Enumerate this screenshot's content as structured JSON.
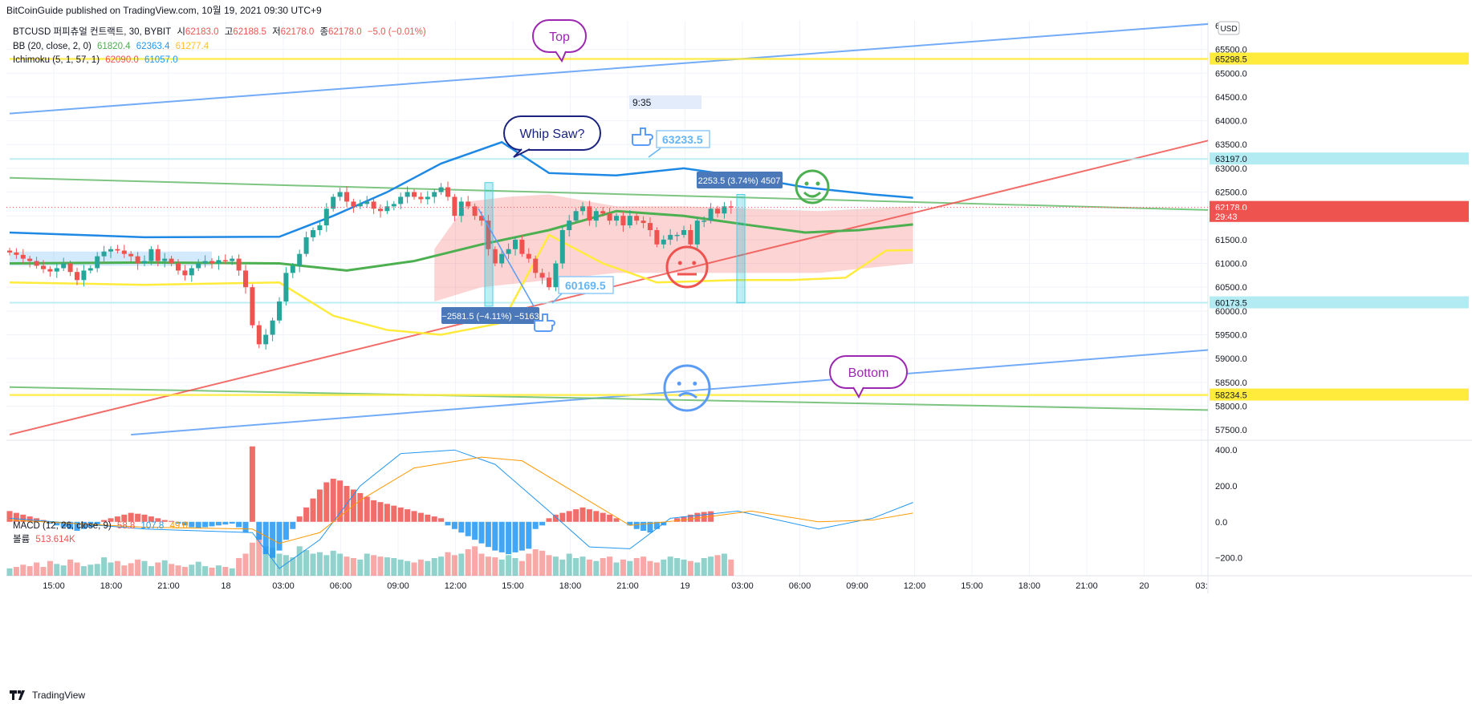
{
  "header": {
    "published": "BitCoinGuide published on TradingView.com, 10월 19, 2021 09:30 UTC+9"
  },
  "legend": {
    "symbol": "BTCUSD 퍼피츄얼 컨트랙트, 30, BYBIT",
    "o_label": "시",
    "o": "62183.0",
    "h_label": "고",
    "h": "62188.5",
    "l_label": "저",
    "l": "62178.0",
    "c_label": "종",
    "c": "62178.0",
    "chg": "−5.0 (−0.01%)",
    "bb_label": "BB (20, close, 2, 0)",
    "bb_basis": "61820.4",
    "bb_upper": "62363.4",
    "bb_lower": "61277.4",
    "ichi_label": "Ichimoku (5, 1, 57, 1)",
    "ichi_conv": "62090.0",
    "ichi_base": "61057.0",
    "macd_label": "MACD (12, 26, close, 9)",
    "macd_hist": "58.8",
    "macd_line": "107.8",
    "macd_signal": "49.0",
    "vol_label": "볼륨",
    "vol": "513.614K"
  },
  "annotations": {
    "top": "Top",
    "whipsaw": "Whip Saw?",
    "bottom": "Bottom",
    "time_box": "9:35",
    "callout_1": "63233.5",
    "callout_2": "60169.5",
    "measure_down": "−2581.5 (−4.11%) −5163",
    "measure_up": "2253.5 (3.74%) 4507"
  },
  "price_axis": {
    "currency": "USD",
    "badges": [
      {
        "label": "65298.5",
        "value": 65298.5,
        "color": "#ffeb3b",
        "text": "#131722"
      },
      {
        "label": "63197.0",
        "value": 63197.0,
        "color": "#b2ebf2",
        "text": "#131722"
      },
      {
        "label": "62178.0",
        "value": 62178.0,
        "color": "#ef5350",
        "text": "#ffffff"
      },
      {
        "label": "29:43",
        "value": 61990,
        "color": "#ef5350",
        "text": "#ffffff"
      },
      {
        "label": "60173.5",
        "value": 60173.5,
        "color": "#b2ebf2",
        "text": "#131722"
      },
      {
        "label": "58234.5",
        "value": 58234.5,
        "color": "#ffeb3b",
        "text": "#131722"
      }
    ],
    "top_partial": "6"
  },
  "macd_axis": {
    "ticks": [
      "400.0",
      "200.0",
      "0.0",
      "−200.0"
    ]
  },
  "time_axis": {
    "ticks": [
      "15:00",
      "18:00",
      "21:00",
      "18",
      "03:00",
      "06:00",
      "09:00",
      "12:00",
      "15:00",
      "18:00",
      "21:00",
      "19",
      "03:00",
      "06:00",
      "09:00",
      "12:00",
      "15:00",
      "18:00",
      "21:00",
      "20",
      "03:"
    ]
  },
  "footer": {
    "brand": "TradingView"
  },
  "chart_data": [
    {
      "type": "candlestick",
      "title": "BTCUSD 퍼피츄얼 컨트랙트, 30, BYBIT",
      "ylim": [
        57300,
        66100
      ],
      "yticks": [
        57500,
        58000,
        58500,
        59000,
        59500,
        60000,
        60500,
        61000,
        61500,
        62000,
        62500,
        63000,
        63500,
        64000,
        64500,
        65000,
        65500
      ],
      "x_start_time": "14:00",
      "interval": "30m",
      "candles_close": [
        61230,
        61180,
        61100,
        61050,
        60950,
        60880,
        60830,
        60900,
        61000,
        60820,
        60650,
        60850,
        60900,
        61150,
        61250,
        61300,
        61270,
        61200,
        61150,
        61000,
        61050,
        61300,
        61050,
        61100,
        61000,
        60850,
        60750,
        60900,
        61000,
        61050,
        61000,
        61070,
        61050,
        61100,
        60850,
        60500,
        59700,
        59300,
        59500,
        59800,
        60200,
        60800,
        60950,
        61200,
        61550,
        61700,
        61800,
        62150,
        62400,
        62500,
        62300,
        62200,
        62250,
        62300,
        62150,
        62100,
        62200,
        62250,
        62400,
        62500,
        62400,
        62350,
        62400,
        62500,
        62600,
        62400,
        62000,
        62300,
        62200,
        62000,
        61900,
        61300,
        61000,
        61200,
        61300,
        61500,
        61200,
        61100,
        60800,
        60700,
        60500,
        61000,
        61700,
        61900,
        62100,
        62200,
        61900,
        62100,
        62050,
        61900,
        62000,
        61800,
        62000,
        61900,
        61850,
        61700,
        61400,
        61500,
        61600,
        61600,
        61700,
        61400,
        61900,
        61900,
        62150,
        62050,
        62200,
        62178
      ],
      "bb_upper_points": [
        [
          0,
          61650
        ],
        [
          20,
          61550
        ],
        [
          40,
          61560
        ],
        [
          48,
          62000
        ],
        [
          56,
          62500
        ],
        [
          64,
          63100
        ],
        [
          73,
          63550
        ],
        [
          80,
          62900
        ],
        [
          90,
          62850
        ],
        [
          100,
          63000
        ],
        [
          110,
          62800
        ],
        [
          118,
          62600
        ],
        [
          128,
          62450
        ],
        [
          134,
          62380
        ]
      ],
      "bb_basis_points": [
        [
          0,
          61000
        ],
        [
          20,
          61020
        ],
        [
          40,
          61000
        ],
        [
          50,
          60850
        ],
        [
          60,
          61050
        ],
        [
          70,
          61400
        ],
        [
          80,
          61700
        ],
        [
          90,
          62100
        ],
        [
          100,
          62000
        ],
        [
          110,
          61800
        ],
        [
          118,
          61650
        ],
        [
          126,
          61700
        ],
        [
          134,
          61820
        ]
      ],
      "bb_lower_points": [
        [
          0,
          60600
        ],
        [
          20,
          60550
        ],
        [
          40,
          60600
        ],
        [
          48,
          59900
        ],
        [
          56,
          59600
        ],
        [
          64,
          59500
        ],
        [
          73,
          59750
        ],
        [
          80,
          61600
        ],
        [
          88,
          61000
        ],
        [
          96,
          60600
        ],
        [
          108,
          60650
        ],
        [
          116,
          60650
        ],
        [
          124,
          60700
        ],
        [
          130,
          61270
        ],
        [
          134,
          61280
        ]
      ],
      "cloud_upper_points": [
        [
          63,
          61300
        ],
        [
          68,
          62300
        ],
        [
          74,
          62400
        ],
        [
          80,
          62450
        ],
        [
          90,
          62200
        ],
        [
          100,
          62200
        ],
        [
          110,
          62150
        ],
        [
          120,
          62100
        ],
        [
          134,
          62200
        ]
      ],
      "cloud_lower_points": [
        [
          63,
          60200
        ],
        [
          70,
          60500
        ],
        [
          80,
          60650
        ],
        [
          90,
          60800
        ],
        [
          100,
          60800
        ],
        [
          120,
          60800
        ],
        [
          134,
          61000
        ]
      ],
      "lines": [
        {
          "name": "upper blue channel",
          "color": "#5b9cf6",
          "from": [
            0,
            64150
          ],
          "to": [
            184,
            66100
          ]
        },
        {
          "name": "lower blue channel",
          "color": "#5b9cf6",
          "from": [
            18,
            57400
          ],
          "to": [
            184,
            59250
          ]
        },
        {
          "name": "upper green",
          "color": "#66bb6a",
          "from": [
            0,
            62800
          ],
          "to": [
            184,
            62100
          ]
        },
        {
          "name": "lower green",
          "color": "#66bb6a",
          "from": [
            0,
            58400
          ],
          "to": [
            184,
            57900
          ]
        },
        {
          "name": "red trendline",
          "color": "#ef5350",
          "from": [
            0,
            57400
          ],
          "to": [
            184,
            63800
          ]
        },
        {
          "name": "yellow top",
          "color": "#ffeb3b",
          "from": [
            0,
            65298.5
          ],
          "to": [
            184,
            65298.5
          ]
        },
        {
          "name": "yellow bottom",
          "color": "#ffeb3b",
          "from": [
            0,
            58234.5
          ],
          "to": [
            184,
            58234.5
          ]
        },
        {
          "name": "cyan top",
          "color": "#b2ebf2",
          "from": [
            0,
            63197
          ],
          "to": [
            184,
            63197
          ]
        },
        {
          "name": "cyan bottom",
          "color": "#b2ebf2",
          "from": [
            0,
            60173.5
          ],
          "to": [
            184,
            60173.5
          ]
        }
      ]
    },
    {
      "type": "bar",
      "title": "MACD (12, 26, close, 9)",
      "ylim": [
        -300,
        450
      ],
      "histogram": [
        60,
        50,
        40,
        30,
        20,
        10,
        -10,
        -20,
        -30,
        -40,
        -50,
        -40,
        -30,
        -20,
        10,
        20,
        30,
        40,
        50,
        45,
        40,
        30,
        20,
        10,
        5,
        -10,
        -20,
        -30,
        -35,
        -30,
        -25,
        -20,
        -15,
        -10,
        -30,
        -60,
        420,
        -100,
        -180,
        -200,
        -160,
        -100,
        -40,
        30,
        80,
        130,
        180,
        220,
        240,
        230,
        200,
        180,
        160,
        140,
        120,
        110,
        100,
        90,
        80,
        70,
        60,
        50,
        40,
        30,
        20,
        -20,
        -40,
        -60,
        -80,
        -100,
        -120,
        -140,
        -160,
        -170,
        -180,
        -170,
        -160,
        -150,
        -40,
        -20,
        20,
        40,
        50,
        60,
        70,
        80,
        70,
        60,
        50,
        40,
        20,
        0,
        -20,
        -40,
        -50,
        -60,
        -40,
        -20,
        0,
        20,
        30,
        40,
        50,
        55,
        58.8
      ],
      "macd_line_points": [
        [
          0,
          20
        ],
        [
          20,
          -40
        ],
        [
          36,
          -60
        ],
        [
          40,
          -260
        ],
        [
          46,
          -100
        ],
        [
          52,
          200
        ],
        [
          58,
          380
        ],
        [
          66,
          400
        ],
        [
          72,
          320
        ],
        [
          80,
          60
        ],
        [
          86,
          -140
        ],
        [
          92,
          -150
        ],
        [
          98,
          20
        ],
        [
          108,
          60
        ],
        [
          120,
          -40
        ],
        [
          128,
          20
        ],
        [
          134,
          107.8
        ]
      ],
      "signal_line_points": [
        [
          0,
          10
        ],
        [
          20,
          -30
        ],
        [
          36,
          -40
        ],
        [
          40,
          -120
        ],
        [
          46,
          -60
        ],
        [
          52,
          120
        ],
        [
          60,
          300
        ],
        [
          70,
          360
        ],
        [
          76,
          340
        ],
        [
          84,
          160
        ],
        [
          92,
          -20
        ],
        [
          100,
          10
        ],
        [
          110,
          60
        ],
        [
          120,
          0
        ],
        [
          128,
          10
        ],
        [
          134,
          49
        ]
      ]
    },
    {
      "type": "bar",
      "title": "볼륨",
      "last_value": "513.614K",
      "values": [
        10,
        12,
        15,
        13,
        18,
        12,
        20,
        16,
        14,
        22,
        18,
        13,
        15,
        16,
        25,
        18,
        20,
        14,
        17,
        22,
        20,
        13,
        18,
        21,
        16,
        14,
        12,
        15,
        19,
        13,
        11,
        14,
        12,
        10,
        24,
        30,
        45,
        60,
        40,
        38,
        30,
        28,
        25,
        40,
        35,
        30,
        32,
        28,
        34,
        30,
        26,
        24,
        22,
        30,
        28,
        26,
        25,
        24,
        22,
        20,
        18,
        22,
        20,
        24,
        26,
        32,
        28,
        30,
        36,
        40,
        30,
        26,
        25,
        22,
        28,
        24,
        20,
        30,
        36,
        34,
        28,
        26,
        22,
        30,
        24,
        26,
        22,
        20,
        24,
        26,
        18,
        22,
        20,
        24,
        26,
        20,
        18,
        22,
        26,
        24,
        22,
        20,
        18,
        24,
        26,
        28,
        30,
        22
      ]
    }
  ]
}
